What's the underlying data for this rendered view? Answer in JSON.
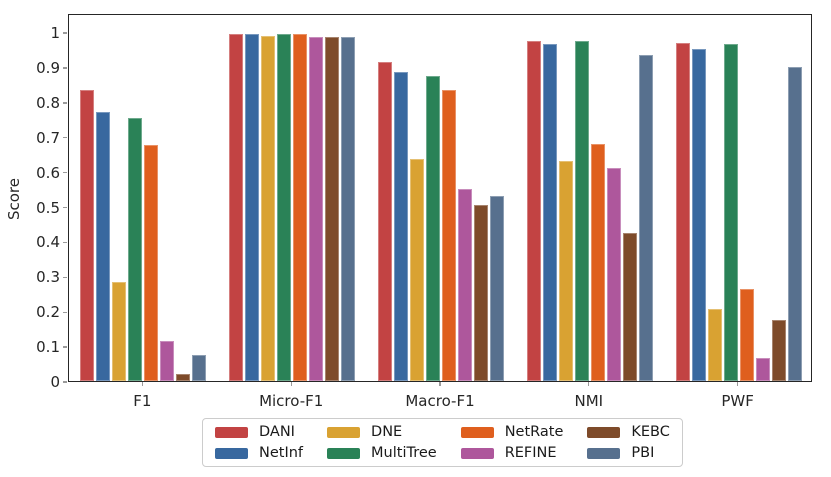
{
  "chart_data": {
    "type": "bar",
    "title": "",
    "xlabel": "",
    "ylabel": "Score",
    "ylim": [
      0,
      1.0545
    ],
    "grid": false,
    "legend_position": "bottom",
    "legend_columns": 4,
    "yticks": [
      {
        "value": 0,
        "label": "0"
      },
      {
        "value": 0.1,
        "label": "0.1"
      },
      {
        "value": 0.2,
        "label": "0.2"
      },
      {
        "value": 0.3,
        "label": "0.3"
      },
      {
        "value": 0.4,
        "label": "0.4"
      },
      {
        "value": 0.5,
        "label": "0.5"
      },
      {
        "value": 0.6,
        "label": "0.6"
      },
      {
        "value": 0.7,
        "label": "0.7"
      },
      {
        "value": 0.8,
        "label": "0.8"
      },
      {
        "value": 0.9,
        "label": "0.9"
      },
      {
        "value": 1,
        "label": "1"
      }
    ],
    "categories": [
      "F1",
      "Micro-F1",
      "Macro-F1",
      "NMI",
      "PWF"
    ],
    "series": [
      {
        "name": "DANI",
        "color": "#c24343",
        "values": [
          0.835,
          0.995,
          0.915,
          0.975,
          0.97
        ]
      },
      {
        "name": "NetInf",
        "color": "#38689f",
        "values": [
          0.77,
          0.995,
          0.885,
          0.965,
          0.95
        ]
      },
      {
        "name": "DNE",
        "color": "#d9a232",
        "values": [
          0.285,
          0.99,
          0.635,
          0.63,
          0.205
        ]
      },
      {
        "name": "MultiTree",
        "color": "#2a8257",
        "values": [
          0.755,
          0.995,
          0.875,
          0.975,
          0.965
        ]
      },
      {
        "name": "NetRate",
        "color": "#df5f1e",
        "values": [
          0.675,
          0.995,
          0.835,
          0.68,
          0.265
        ]
      },
      {
        "name": "REFINE",
        "color": "#ae579c",
        "values": [
          0.115,
          0.985,
          0.55,
          0.61,
          0.065
        ]
      },
      {
        "name": "KEBC",
        "color": "#7e4b2a",
        "values": [
          0.02,
          0.985,
          0.505,
          0.425,
          0.175
        ]
      },
      {
        "name": "PBI",
        "color": "#57708e",
        "values": [
          0.075,
          0.985,
          0.53,
          0.935,
          0.9
        ]
      }
    ]
  }
}
